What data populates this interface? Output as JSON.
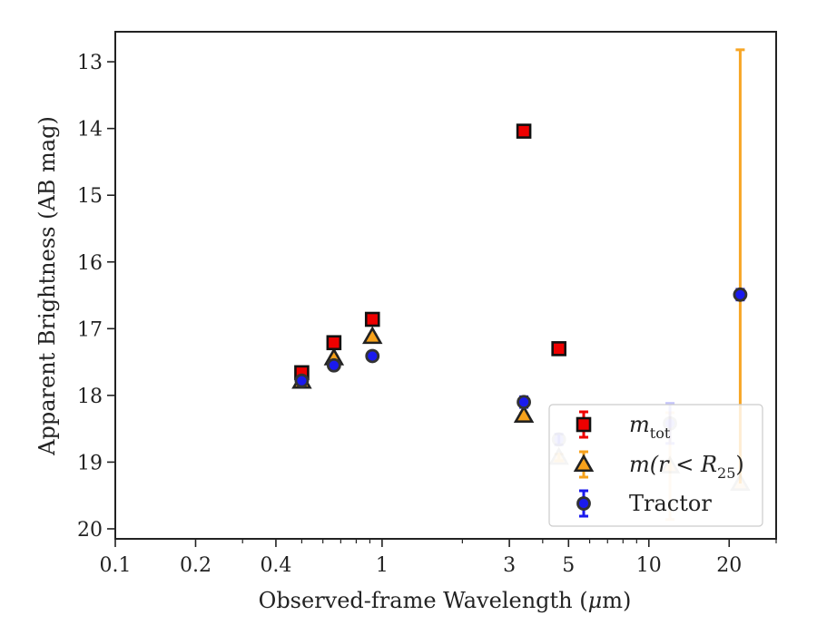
{
  "chart_data": {
    "type": "scatter",
    "xlabel_main": "Observed-frame Wavelength (",
    "xlabel_mu": "μ",
    "xlabel_unit": "m)",
    "ylabel": "Apparent Brightness (AB mag)",
    "x_scale": "log",
    "xlim": [
      0.1,
      30
    ],
    "ylim": [
      20.15,
      12.55
    ],
    "y_inverted": true,
    "x_ticks": [
      0.1,
      0.2,
      0.4,
      1,
      3,
      5,
      10,
      20
    ],
    "x_tick_labels": [
      "0.1",
      "0.2",
      "0.4",
      "1",
      "3",
      "5",
      "10",
      "20"
    ],
    "y_ticks": [
      13,
      14,
      15,
      16,
      17,
      18,
      19,
      20
    ],
    "y_tick_labels": [
      "13",
      "14",
      "15",
      "16",
      "17",
      "18",
      "19",
      "20"
    ],
    "legend_position": "bottom-right",
    "legend": {
      "m_tot_main": "m",
      "m_tot_sub": "tot",
      "m_r_main": "m(r < R",
      "m_r_sub": "25",
      "m_r_close": ")",
      "tractor": "Tractor"
    },
    "series": [
      {
        "key": "m_tot",
        "marker": "square",
        "color": "#ee0000",
        "err_color": "#ee0000",
        "points": [
          {
            "x": 0.5,
            "y": 17.66,
            "err": 0.03
          },
          {
            "x": 0.66,
            "y": 17.21,
            "err": 0.03
          },
          {
            "x": 0.92,
            "y": 16.86,
            "err": 0.03
          },
          {
            "x": 3.4,
            "y": 14.04,
            "err": 0.03
          },
          {
            "x": 4.6,
            "y": 17.3,
            "err": 0.03
          }
        ]
      },
      {
        "key": "m_r25",
        "marker": "triangle",
        "color": "#f7a21b",
        "err_color": "#f7a21b",
        "points": [
          {
            "x": 0.5,
            "y": 17.79,
            "err": 0.03,
            "alpha": 1
          },
          {
            "x": 0.66,
            "y": 17.44,
            "err": 0.03,
            "alpha": 1
          },
          {
            "x": 0.92,
            "y": 17.12,
            "err": 0.03,
            "alpha": 1
          },
          {
            "x": 3.4,
            "y": 18.3,
            "err": 0.03,
            "alpha": 1
          },
          {
            "x": 4.6,
            "y": 18.93,
            "err": 0.05,
            "alpha": 0.25
          },
          {
            "x": 12.0,
            "y": 19.06,
            "err": 0.8,
            "alpha": 0.25
          },
          {
            "x": 22.0,
            "y": 19.32,
            "err_up": 6.5,
            "err_down": 0.0,
            "alpha": 0.25,
            "upper_bar": true
          }
        ]
      },
      {
        "key": "tractor",
        "marker": "circle",
        "color": "#1a1aee",
        "err_color": "#1a1aee",
        "points": [
          {
            "x": 0.5,
            "y": 17.78,
            "err": 0.05,
            "alpha": 1
          },
          {
            "x": 0.66,
            "y": 17.55,
            "err": 0.05,
            "alpha": 1
          },
          {
            "x": 0.92,
            "y": 17.41,
            "err": 0.05,
            "alpha": 1
          },
          {
            "x": 3.4,
            "y": 18.1,
            "err": 0.08,
            "alpha": 1
          },
          {
            "x": 4.6,
            "y": 18.66,
            "err": 0.08,
            "alpha": 0.25
          },
          {
            "x": 12.0,
            "y": 18.42,
            "err": 0.3,
            "alpha": 0.25
          },
          {
            "x": 22.0,
            "y": 16.49,
            "err": 0.08,
            "alpha": 1
          }
        ]
      }
    ]
  }
}
